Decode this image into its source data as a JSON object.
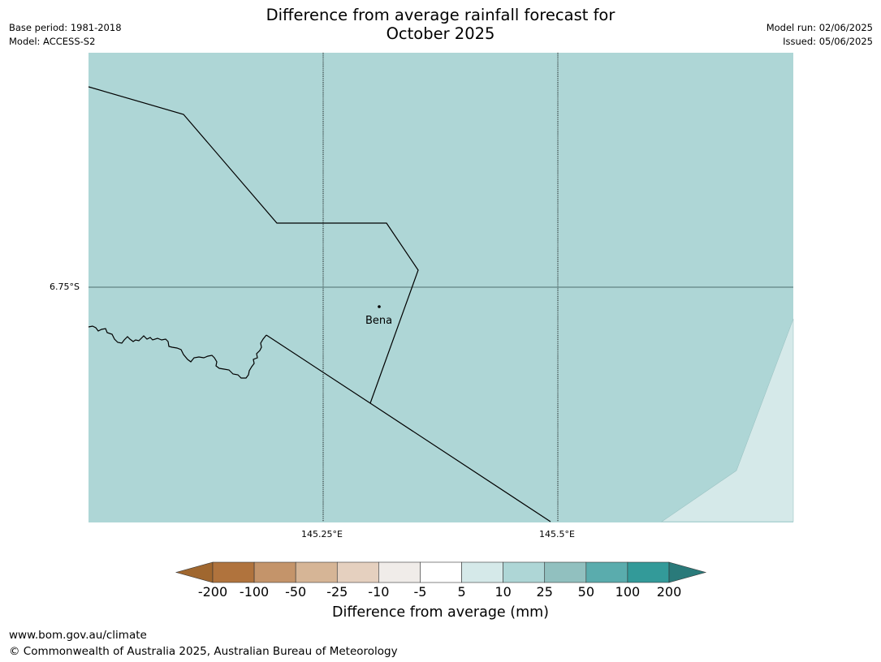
{
  "header": {
    "title_line1": "Difference from average rainfall forecast for",
    "title_line2": "October 2025",
    "base_period": "Base period: 1981-2018",
    "model": "Model: ACCESS-S2",
    "model_run": "Model run: 02/06/2025",
    "issued": "Issued: 05/06/2025"
  },
  "map": {
    "lat_tick": "6.75°S",
    "lon_ticks": [
      "145.25°E",
      "145.5°E"
    ],
    "town": "Bena",
    "region_colors": {
      "main": "#aed6d6",
      "light": "#d5e9e9"
    },
    "regions": [
      {
        "category": "10 to 25 mm",
        "color": "#aed6d6"
      },
      {
        "category": "5 to 10 mm",
        "color": "#d5e9e9"
      }
    ]
  },
  "colorbar": {
    "labels": [
      "-200",
      "-100",
      "-50",
      "-25",
      "-10",
      "-5",
      "5",
      "10",
      "25",
      "50",
      "100",
      "200"
    ],
    "colors": [
      "#a0672f",
      "#b0733d",
      "#c4946a",
      "#d6b596",
      "#e5d0bf",
      "#f0ece9",
      "#ffffff",
      "#d5e9e9",
      "#aed6d6",
      "#91c0bf",
      "#5aacad",
      "#339a99",
      "#2a7a7a"
    ],
    "title": "Difference from average (mm)"
  },
  "footer": {
    "url": "www.bom.gov.au/climate",
    "copyright": "© Commonwealth of Australia 2025, Australian Bureau of Meteorology"
  }
}
